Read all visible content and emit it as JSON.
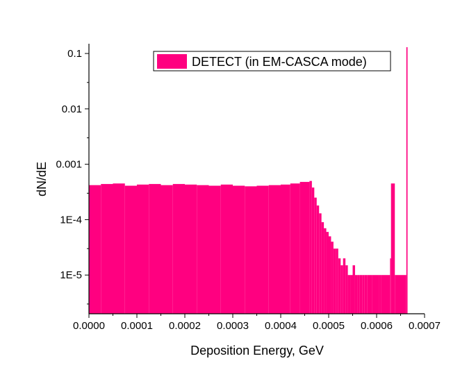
{
  "chart_data": {
    "type": "bar",
    "title": "",
    "xlabel": "Deposition Energy, GeV",
    "ylabel": "dN/dE",
    "xscale": "linear",
    "yscale": "log",
    "xlim": [
      0,
      0.0007
    ],
    "ylim": [
      2e-06,
      0.15
    ],
    "grid": false,
    "legend_position": "top-right",
    "bar_color": "#ff0080",
    "xticks": [
      {
        "value": 0.0,
        "label": "0.0000"
      },
      {
        "value": 0.0001,
        "label": "0.0001"
      },
      {
        "value": 0.0002,
        "label": "0.0002"
      },
      {
        "value": 0.0003,
        "label": "0.0003"
      },
      {
        "value": 0.0004,
        "label": "0.0004"
      },
      {
        "value": 0.0005,
        "label": "0.0005"
      },
      {
        "value": 0.0006,
        "label": "0.0006"
      },
      {
        "value": 0.0007,
        "label": "0.0007"
      }
    ],
    "yticks": [
      {
        "value": 1e-05,
        "label": "1E-5"
      },
      {
        "value": 0.0001,
        "label": "1E-4"
      },
      {
        "value": 0.001,
        "label": "0.001"
      },
      {
        "value": 0.01,
        "label": "0.01"
      },
      {
        "value": 0.1,
        "label": "0.1"
      }
    ],
    "series": [
      {
        "name": "DETECT (in EM-CASCA mode)",
        "bin_width": 2.5e-06,
        "x": [
          0.0,
          2.5e-05,
          5e-05,
          7.5e-05,
          0.0001,
          0.000125,
          0.00015,
          0.000175,
          0.0002,
          0.000225,
          0.00025,
          0.000275,
          0.0003,
          0.000325,
          0.00035,
          0.000375,
          0.0004,
          0.00042,
          0.00044,
          0.00046,
          0.000465,
          0.00047,
          0.000475,
          0.00048,
          0.000485,
          0.00049,
          0.000495,
          0.0005,
          0.000505,
          0.00051,
          0.000515,
          0.00052,
          0.000525,
          0.00053,
          0.000535,
          0.00054,
          0.000545,
          0.00055,
          0.000555,
          0.00056,
          0.000565,
          0.00057,
          0.000575,
          0.00058,
          0.00059,
          0.0006,
          0.000605,
          0.00061,
          0.000628,
          0.00063,
          0.000638,
          0.000662
        ],
        "values": [
          0.00042,
          0.00044,
          0.00045,
          0.00041,
          0.00043,
          0.00044,
          0.00042,
          0.00044,
          0.00043,
          0.00042,
          0.00041,
          0.00043,
          0.00041,
          0.0004,
          0.00041,
          0.00042,
          0.00043,
          0.00045,
          0.00048,
          0.0005,
          0.00038,
          0.00025,
          0.00018,
          0.00013,
          9e-05,
          7e-05,
          6e-05,
          5e-05,
          4e-05,
          3e-05,
          3e-05,
          2e-05,
          1.5e-05,
          2e-05,
          1.5e-05,
          1e-05,
          1e-05,
          1.5e-05,
          1e-05,
          1e-05,
          1e-05,
          1e-05,
          1e-05,
          1e-05,
          1e-05,
          1e-05,
          1e-05,
          1e-05,
          2e-05,
          0.00045,
          1e-05,
          0.13
        ]
      }
    ]
  }
}
